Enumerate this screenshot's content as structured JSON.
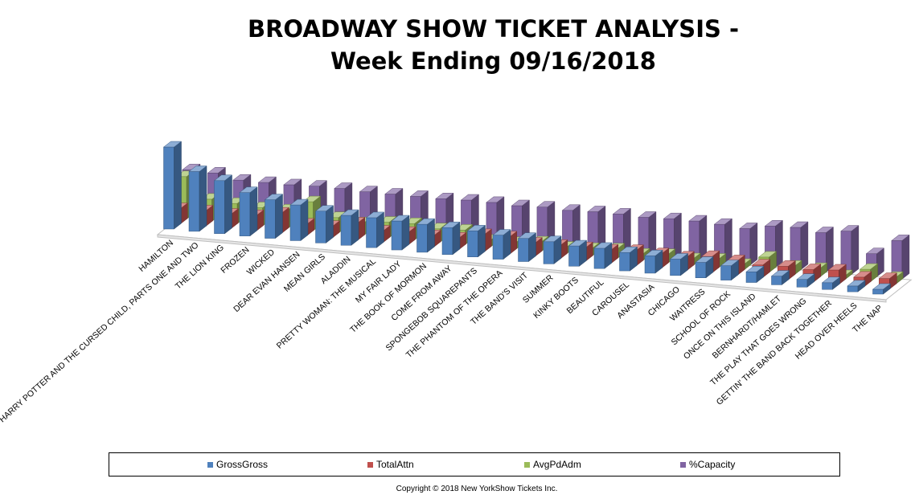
{
  "chart_data": {
    "type": "bar",
    "title_line1": "BROADWAY  SHOW TICKET ANALYSIS -",
    "title_line2": "Week Ending 09/16/2018",
    "categories": [
      "HAMILTON",
      "HARRY POTTER AND THE CURSED CHILD, PARTS ONE AND TWO",
      "THE LION KING",
      "FROZEN",
      "WICKED",
      "DEAR EVAN HANSEN",
      "MEAN GIRLS",
      "ALADDIN",
      "PRETTY WOMAN: THE MUSICAL",
      "MY FAIR LADY",
      "THE BOOK OF MORMON",
      "COME FROM AWAY",
      "SPONGEBOB SQUAREPANTS",
      "THE PHANTOM OF THE OPERA",
      "THE BAND'S VISIT",
      "SUMMER",
      "KINKY BOOTS",
      "BEAUTIFUL",
      "CAROUSEL",
      "ANASTASIA",
      "CHICAGO",
      "WAITRESS",
      "SCHOOL OF ROCK",
      "ONCE ON THIS ISLAND",
      "BERNHARDT/HAMLET",
      "THE PLAY THAT GOES WRONG",
      "GETTIN' THE BAND BACK TOGETHER",
      "HEAD OVER HEELS",
      "THE NAP"
    ],
    "series": [
      {
        "name": "GrossGross",
        "color": "#4f81bd",
        "values": [
          85,
          62,
          55,
          45,
          40,
          37,
          33,
          31,
          31,
          30,
          29,
          28,
          27,
          25,
          24,
          23,
          21,
          21,
          19,
          18,
          17,
          16,
          15,
          11,
          9,
          8,
          7,
          6,
          5
        ]
      },
      {
        "name": "TotalAttn",
        "color": "#c0504d",
        "values": [
          16,
          16,
          15,
          16,
          21,
          12,
          12,
          18,
          12,
          13,
          12,
          12,
          18,
          18,
          14,
          14,
          14,
          14,
          16,
          15,
          14,
          17,
          15,
          13,
          14,
          13,
          15,
          10,
          11
        ]
      },
      {
        "name": "AvgPdAdm",
        "color": "#9bbb59",
        "values": [
          44,
          23,
          21,
          19,
          19,
          30,
          16,
          13,
          16,
          17,
          14,
          15,
          7,
          7,
          10,
          7,
          8,
          10,
          7,
          9,
          7,
          9,
          6,
          16,
          9,
          9,
          4,
          13,
          7
        ]
      },
      {
        "name": "%Capacity",
        "color": "#8064a2",
        "values": [
          46,
          45,
          40,
          40,
          40,
          41,
          41,
          40,
          40,
          40,
          40,
          41,
          41,
          40,
          41,
          40,
          41,
          41,
          40,
          41,
          41,
          40,
          38,
          43,
          44,
          41,
          45,
          24,
          40
        ]
      }
    ],
    "ylim": [
      0,
      100
    ],
    "legend_position": "bottom"
  },
  "copyright": "Copyright © 2018 New YorkShow Tickets Inc."
}
